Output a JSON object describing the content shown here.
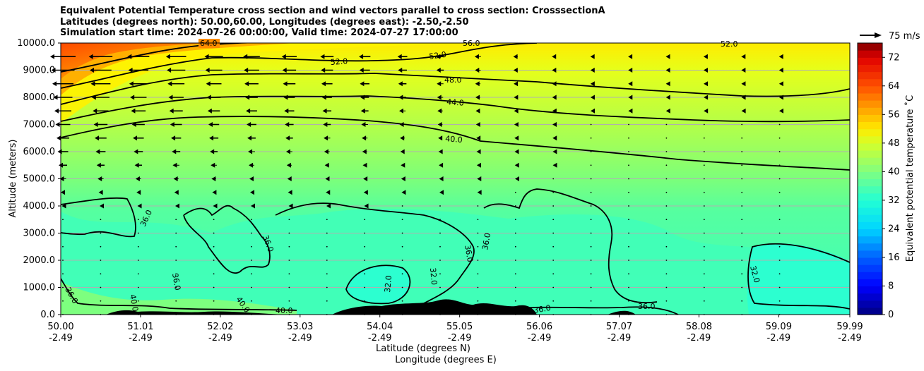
{
  "chart_data": {
    "type": "heatmap",
    "title_lines": [
      "Equivalent Potential Temperature cross section and wind vectors parallel to cross section: CrosssectionA",
      "Latitudes (degrees north): 50.00,60.00, Longitudes (degrees east): -2.50,-2.50",
      "Simulation start time: 2024-07-26 00:00:00, Valid time: 2024-07-27 17:00:00"
    ],
    "ylabel": "Altitude (meters)",
    "xlabel_lat": "Latitude (degrees N)",
    "xlabel_lon": "Longitude (degrees E)",
    "ylim": [
      0,
      10000
    ],
    "y_ticks": [
      0,
      1000,
      2000,
      3000,
      4000,
      5000,
      6000,
      7000,
      8000,
      9000,
      10000
    ],
    "y_tick_labels": [
      "0.0",
      "1000.0",
      "2000.0",
      "3000.0",
      "4000.0",
      "5000.0",
      "6000.0",
      "7000.0",
      "8000.0",
      "9000.0",
      "10000.0"
    ],
    "xlim": [
      50.0,
      59.99
    ],
    "x_ticks": [
      50.0,
      51.01,
      52.02,
      53.03,
      54.04,
      55.05,
      56.06,
      57.07,
      58.08,
      59.09,
      59.99
    ],
    "x_tick_lat_labels": [
      "50.00",
      "51.01",
      "52.02",
      "53.03",
      "54.04",
      "55.05",
      "56.06",
      "57.07",
      "58.08",
      "59.09",
      "59.99"
    ],
    "x_tick_lon_labels": [
      "-2.49",
      "-2.49",
      "-2.49",
      "-2.49",
      "-2.49",
      "-2.49",
      "-2.49",
      "-2.49",
      "-2.49",
      "-2.49",
      "-2.49"
    ],
    "colorbar": {
      "label": "Equivalent potential temperature ˚C",
      "range": [
        0,
        76
      ],
      "ticks": [
        0,
        8,
        16,
        24,
        32,
        40,
        48,
        56,
        64,
        72
      ],
      "tick_labels": [
        "0",
        "8",
        "16",
        "24",
        "32",
        "40",
        "48",
        "56",
        "64",
        "72"
      ],
      "colormap": "jet"
    },
    "quiver_key_label": "75 m/s",
    "contour_labels": [
      "64.0",
      "56.0",
      "52.0",
      "52.0",
      "52.0",
      "48.0",
      "44.0",
      "40.0",
      "36.0",
      "36.0",
      "36.0",
      "36.0",
      "36.0",
      "36.0",
      "32.0",
      "32.0",
      "32.0",
      "40.0",
      "40.0",
      "40.0",
      "36.0",
      "36.0"
    ],
    "color_anchors": [
      {
        "v": 0,
        "c": "#00007f"
      },
      {
        "v": 8,
        "c": "#0000ff"
      },
      {
        "v": 16,
        "c": "#0060ff"
      },
      {
        "v": 24,
        "c": "#00d5ff"
      },
      {
        "v": 32,
        "c": "#22ffd4"
      },
      {
        "v": 40,
        "c": "#80ff80"
      },
      {
        "v": 48,
        "c": "#d4ff2a"
      },
      {
        "v": 52,
        "c": "#ffeb00"
      },
      {
        "v": 56,
        "c": "#ffb800"
      },
      {
        "v": 64,
        "c": "#ff5000"
      },
      {
        "v": 72,
        "c": "#e00000"
      },
      {
        "v": 76,
        "c": "#7f0000"
      }
    ]
  }
}
